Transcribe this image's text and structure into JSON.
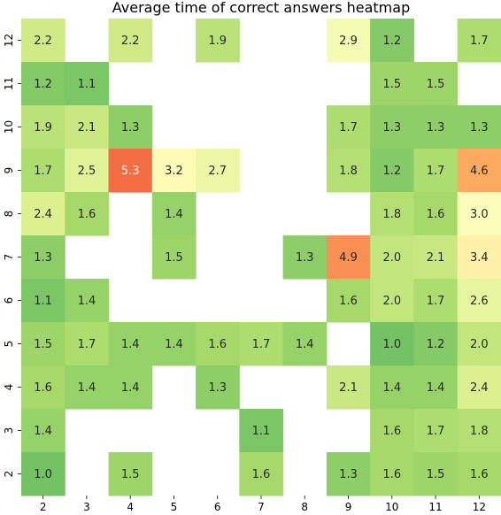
{
  "chart_data": {
    "type": "heatmap",
    "title": "Average time of correct answers heatmap",
    "xlabel": "",
    "ylabel": "",
    "x_categories": [
      "2",
      "3",
      "4",
      "5",
      "6",
      "7",
      "8",
      "9",
      "10",
      "11",
      "12"
    ],
    "y_categories": [
      "12",
      "11",
      "10",
      "9",
      "8",
      "7",
      "6",
      "5",
      "4",
      "3",
      "2"
    ],
    "values": [
      [
        2.2,
        null,
        2.2,
        null,
        1.9,
        null,
        null,
        2.9,
        1.2,
        null,
        1.7
      ],
      [
        1.2,
        1.1,
        null,
        null,
        null,
        null,
        null,
        null,
        1.5,
        1.5,
        null
      ],
      [
        1.9,
        2.1,
        1.3,
        null,
        null,
        null,
        null,
        1.7,
        1.3,
        1.3,
        1.3
      ],
      [
        1.7,
        2.5,
        5.3,
        3.2,
        2.7,
        null,
        null,
        1.8,
        1.2,
        1.7,
        4.6
      ],
      [
        2.4,
        1.6,
        null,
        1.4,
        null,
        null,
        null,
        null,
        1.8,
        1.6,
        3.0
      ],
      [
        1.3,
        null,
        null,
        1.5,
        null,
        null,
        1.3,
        4.9,
        2.0,
        2.1,
        3.4
      ],
      [
        1.1,
        1.4,
        null,
        null,
        null,
        null,
        null,
        1.6,
        2.0,
        1.7,
        2.6
      ],
      [
        1.5,
        1.7,
        1.4,
        1.4,
        1.6,
        1.7,
        1.4,
        null,
        1.0,
        1.2,
        2.0
      ],
      [
        1.6,
        1.4,
        1.4,
        null,
        1.3,
        null,
        null,
        2.1,
        1.4,
        1.4,
        2.4
      ],
      [
        1.4,
        null,
        null,
        null,
        null,
        1.1,
        null,
        null,
        1.6,
        1.7,
        1.8
      ],
      [
        1.0,
        null,
        1.5,
        null,
        null,
        1.6,
        null,
        1.3,
        1.6,
        1.5,
        1.6
      ]
    ],
    "value_format": "0.0",
    "colormap": "RdYlGn_r",
    "color_range": [
      1.0,
      5.3
    ],
    "colorbar": false,
    "grid": false
  }
}
